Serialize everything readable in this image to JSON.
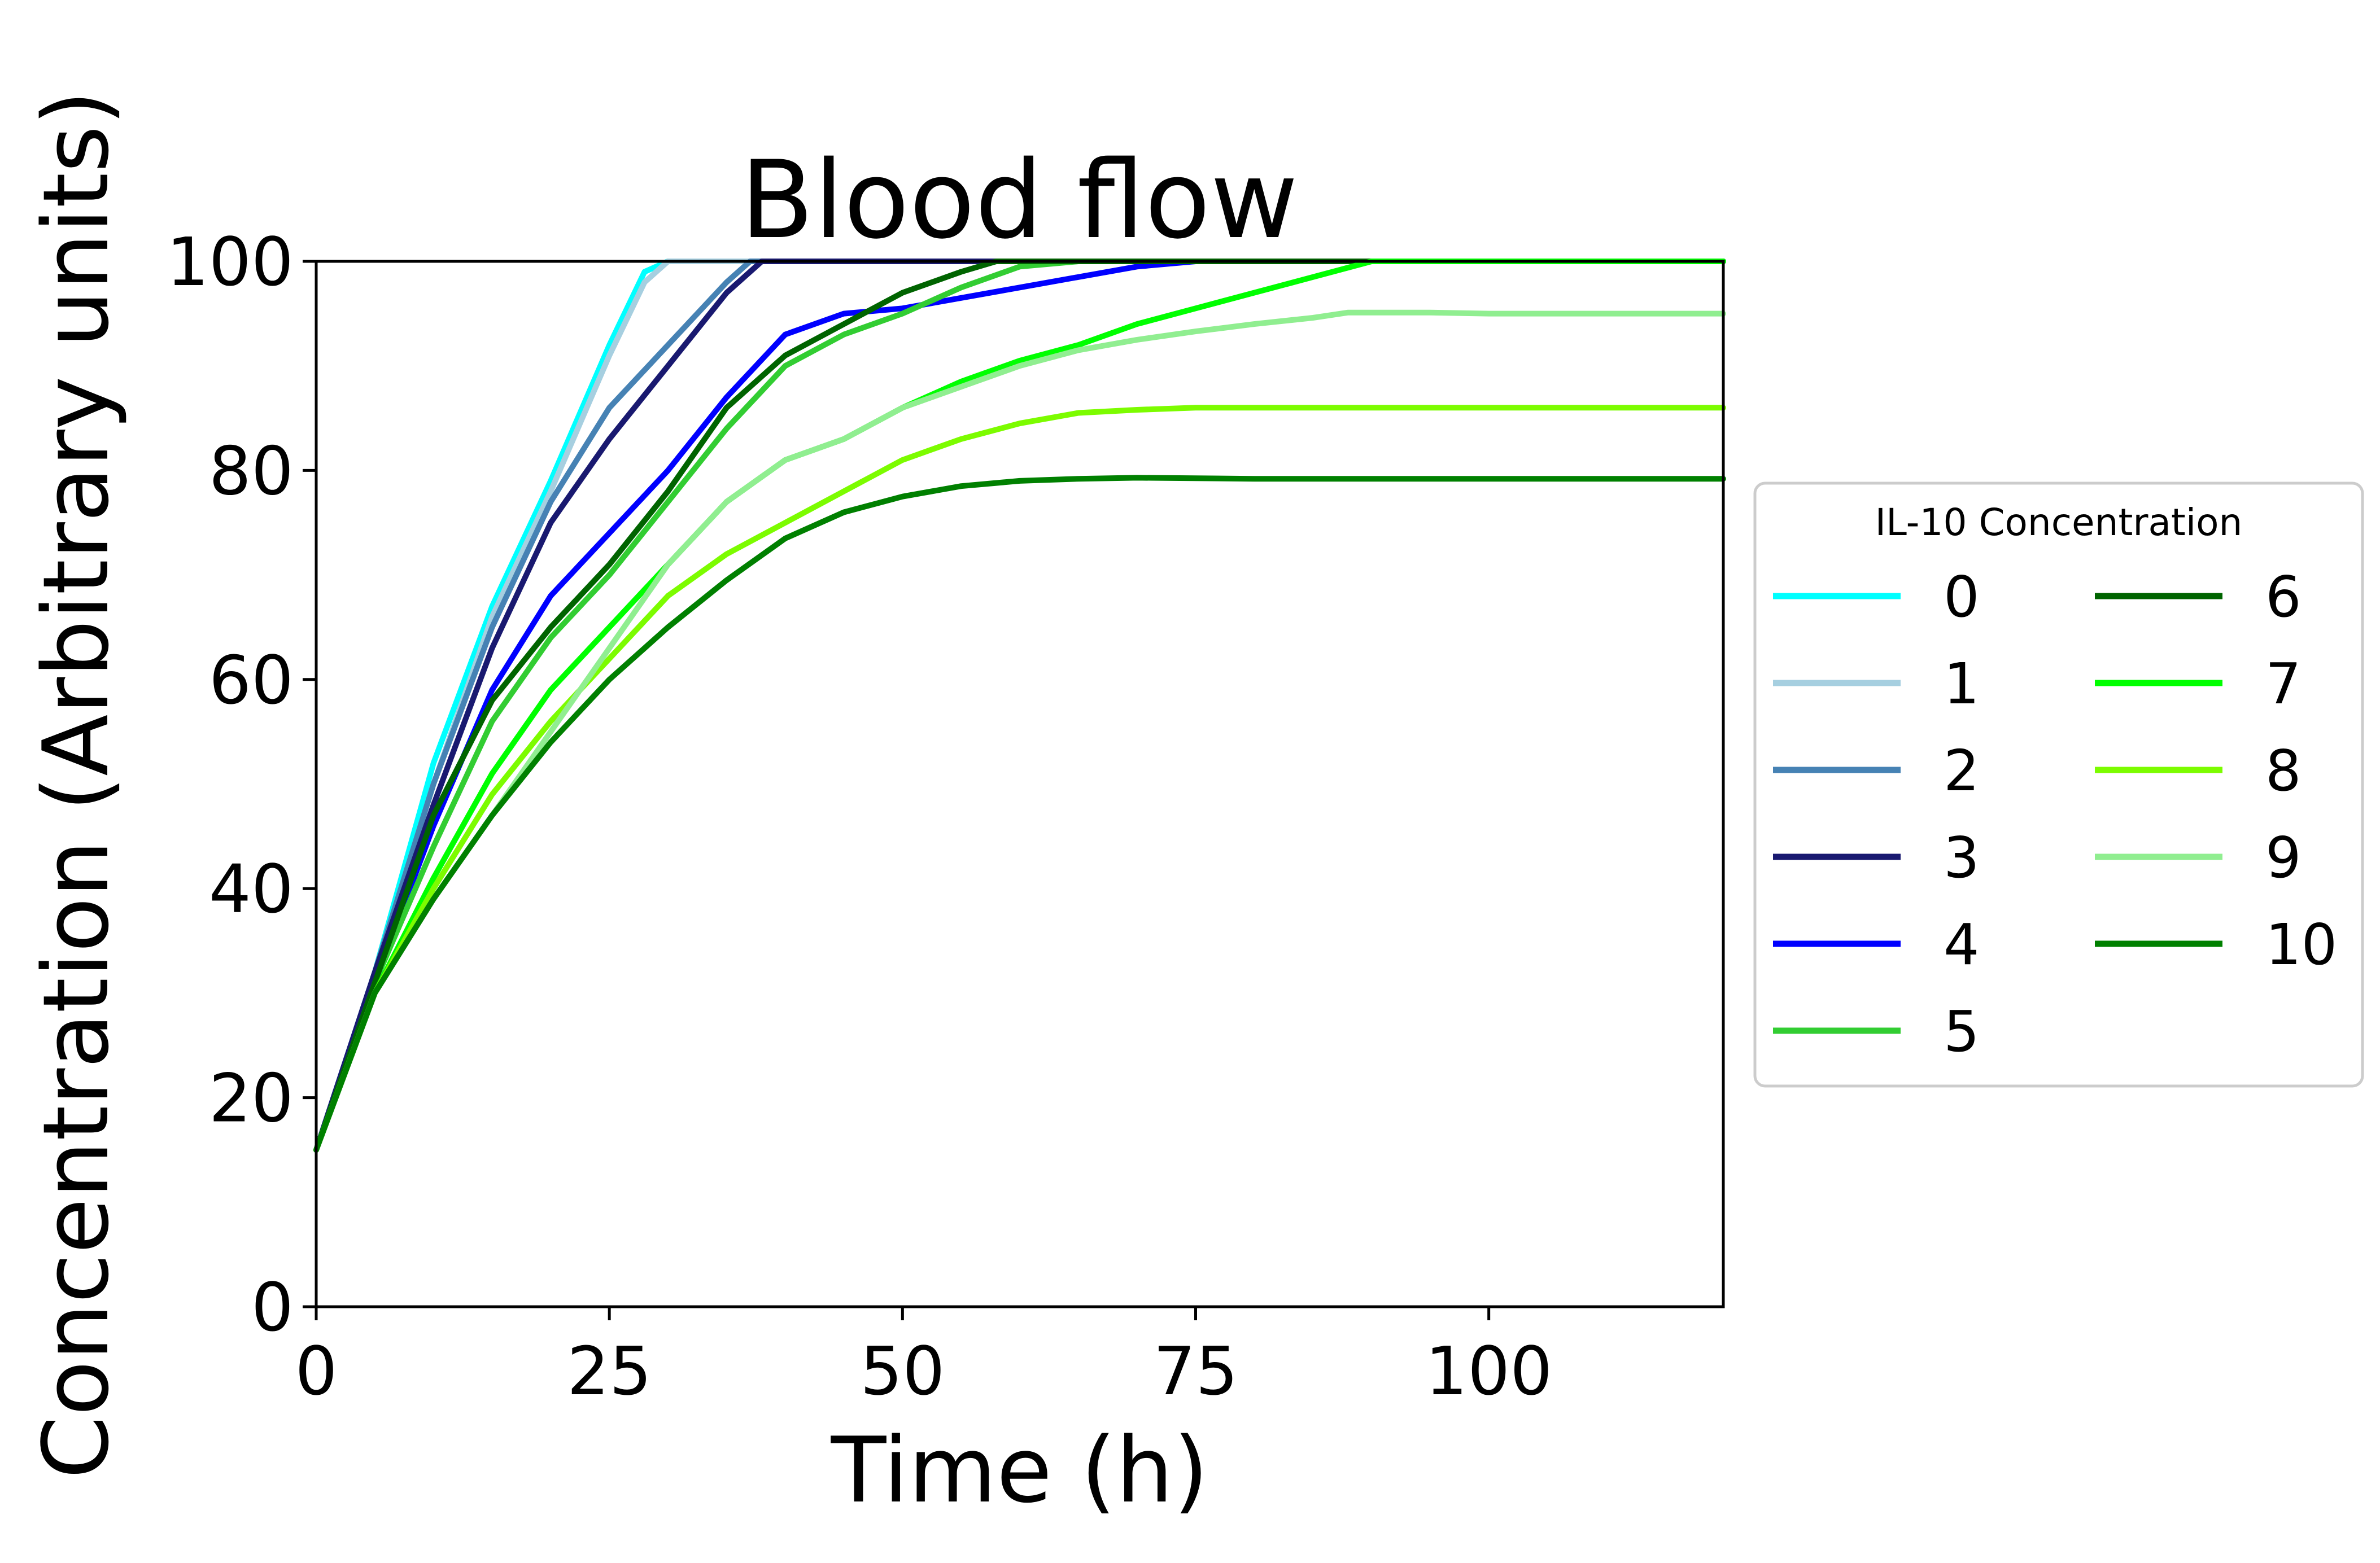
{
  "chart_data": {
    "type": "line",
    "title": "Blood flow",
    "xlabel": "Time (h)",
    "ylabel": "Concentration (Arbitrary units)",
    "xlim": [
      0,
      120
    ],
    "ylim": [
      0,
      100
    ],
    "xticks": [
      0,
      25,
      50,
      75,
      100
    ],
    "yticks": [
      0,
      20,
      40,
      60,
      80,
      100
    ],
    "grid": false,
    "legend": {
      "title": "IL-10 Concentration",
      "placement": "right, outside plot",
      "columns": 2
    },
    "series": [
      {
        "name": "0",
        "color": "#00ffff",
        "x": [
          0,
          5,
          10,
          15,
          20,
          25,
          28,
          30,
          40,
          60,
          80,
          100,
          120
        ],
        "y": [
          15,
          32,
          52,
          67,
          79,
          92,
          99,
          100,
          100,
          100,
          100,
          100,
          100
        ]
      },
      {
        "name": "1",
        "color": "#a6cfe0",
        "x": [
          0,
          5,
          10,
          15,
          20,
          25,
          28,
          30,
          40,
          60,
          80,
          100,
          120
        ],
        "y": [
          15,
          32,
          50,
          66,
          78,
          91,
          98,
          100,
          100,
          100,
          100,
          100,
          100
        ]
      },
      {
        "name": "2",
        "color": "#4682b4",
        "x": [
          0,
          5,
          10,
          15,
          20,
          25,
          30,
          35,
          37,
          40,
          60,
          80,
          100,
          120
        ],
        "y": [
          15,
          32,
          50,
          65,
          77,
          86,
          92,
          98,
          100,
          100,
          100,
          100,
          100,
          100
        ]
      },
      {
        "name": "3",
        "color": "#191970",
        "x": [
          0,
          5,
          10,
          15,
          20,
          25,
          30,
          35,
          38,
          40,
          60,
          80,
          100,
          120
        ],
        "y": [
          15,
          32,
          48,
          63,
          75,
          83,
          90,
          97,
          100,
          100,
          100,
          100,
          100,
          100
        ]
      },
      {
        "name": "4",
        "color": "#0000ff",
        "x": [
          0,
          5,
          10,
          15,
          20,
          25,
          30,
          35,
          40,
          45,
          50,
          55,
          60,
          65,
          70,
          75,
          80,
          100,
          120
        ],
        "y": [
          15,
          31,
          46,
          59,
          68,
          74,
          80,
          87,
          93,
          95,
          95.5,
          96.5,
          97.5,
          98.5,
          99.5,
          100,
          100,
          100,
          100
        ]
      },
      {
        "name": "5",
        "color": "#32cd32",
        "x": [
          0,
          5,
          10,
          15,
          20,
          25,
          30,
          35,
          40,
          45,
          50,
          55,
          60,
          65,
          70,
          80,
          100,
          120
        ],
        "y": [
          15,
          31,
          44,
          56,
          64,
          70,
          77,
          84,
          90,
          93,
          95,
          97.5,
          99.5,
          100,
          100,
          100,
          100,
          100
        ]
      },
      {
        "name": "6",
        "color": "#006400",
        "x": [
          0,
          5,
          10,
          15,
          20,
          25,
          30,
          35,
          40,
          45,
          50,
          55,
          58,
          60,
          80,
          100,
          120
        ],
        "y": [
          15,
          31,
          47,
          58,
          65,
          71,
          78,
          86,
          91,
          94,
          97,
          99,
          100,
          100,
          100,
          100,
          100
        ]
      },
      {
        "name": "7",
        "color": "#00ff00",
        "x": [
          0,
          5,
          10,
          15,
          20,
          25,
          30,
          35,
          40,
          45,
          50,
          55,
          60,
          65,
          70,
          75,
          80,
          85,
          90,
          100,
          120
        ],
        "y": [
          15,
          30,
          41,
          51,
          59,
          65,
          71,
          77,
          81,
          83,
          86,
          88.5,
          90.5,
          92,
          94,
          95.5,
          97,
          98.5,
          100,
          100,
          100
        ]
      },
      {
        "name": "8",
        "color": "#7cfc00",
        "x": [
          0,
          5,
          10,
          15,
          20,
          25,
          30,
          35,
          40,
          45,
          50,
          55,
          60,
          65,
          70,
          75,
          80,
          100,
          120
        ],
        "y": [
          15,
          30,
          40,
          49,
          56,
          62,
          68,
          72,
          75,
          78,
          81,
          83,
          84.5,
          85.5,
          85.8,
          86,
          86,
          86,
          86
        ]
      },
      {
        "name": "9",
        "color": "#90ee90",
        "x": [
          0,
          5,
          10,
          15,
          20,
          25,
          30,
          35,
          40,
          45,
          50,
          55,
          60,
          65,
          70,
          75,
          80,
          85,
          88,
          95,
          100,
          120
        ],
        "y": [
          15,
          30,
          39,
          47,
          55,
          63,
          71,
          77,
          81,
          83,
          86,
          88,
          90,
          91.5,
          92.5,
          93.3,
          94,
          94.6,
          95.1,
          95.1,
          95,
          95
        ]
      },
      {
        "name": "10",
        "color": "#008000",
        "x": [
          0,
          5,
          10,
          15,
          20,
          25,
          30,
          35,
          40,
          45,
          50,
          55,
          60,
          65,
          70,
          80,
          100,
          120
        ],
        "y": [
          15,
          30,
          39,
          47,
          54,
          60,
          65,
          69.5,
          73.5,
          76,
          77.5,
          78.5,
          79,
          79.2,
          79.3,
          79.2,
          79.2,
          79.2
        ]
      }
    ]
  }
}
